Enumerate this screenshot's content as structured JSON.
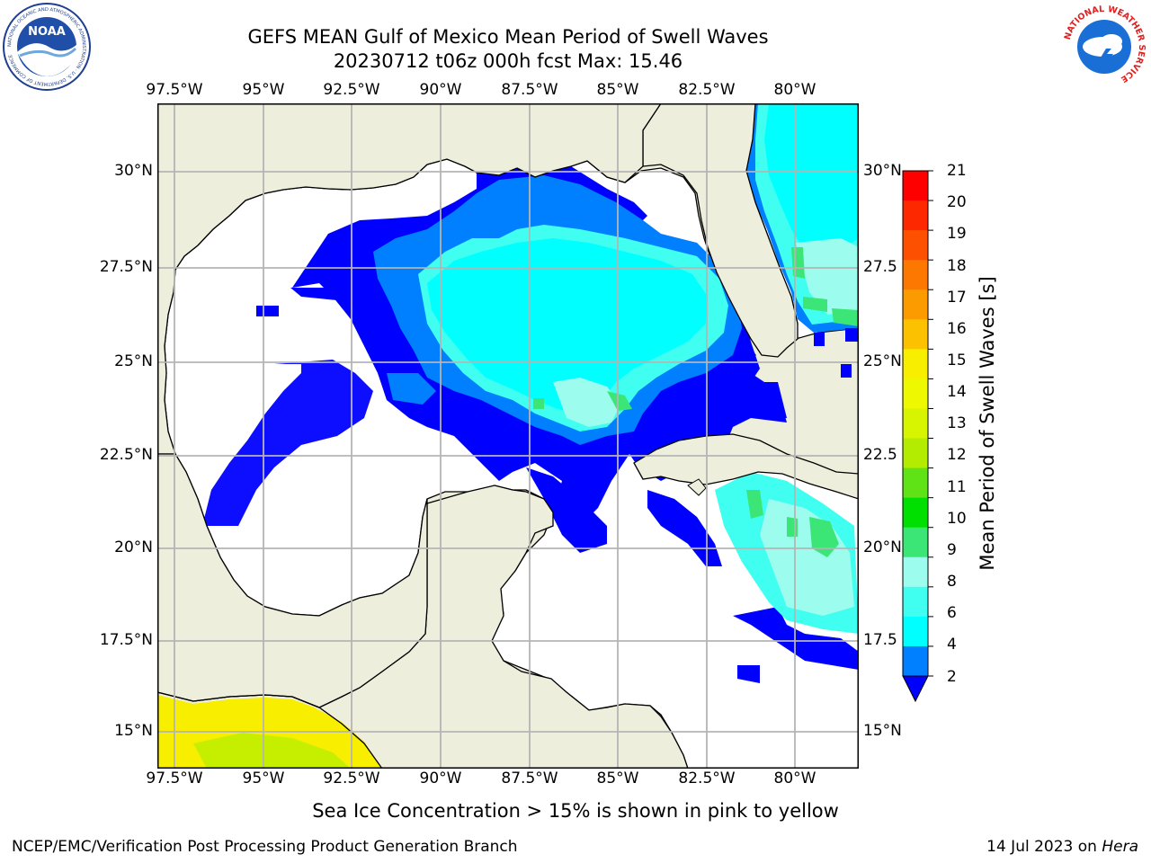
{
  "title": {
    "line1": "GEFS MEAN Gulf of Mexico Mean Period of Swell Waves",
    "line2": "20230712 t06z 000h fcst   Max: 15.46"
  },
  "map": {
    "lon_labels": [
      "97.5°W",
      "95°W",
      "92.5°W",
      "90°W",
      "87.5°W",
      "85°W",
      "82.5°W",
      "80°W"
    ],
    "lat_labels_left": [
      "30°N",
      "27.5°N",
      "25°N",
      "22.5°N",
      "20°N",
      "17.5°N",
      "15°N"
    ],
    "lat_labels_right": [
      "30°N",
      "27.5",
      "25°N",
      "22.5",
      "20°N",
      "17.5",
      "15°N"
    ],
    "colors": {
      "land": "#eeeedd",
      "ocean": "#ffffff",
      "grid": "#b4b4b4",
      "coast": "#000000"
    }
  },
  "colorbar": {
    "label": "Mean Period of Swell Waves [s]",
    "ticks": [
      "21",
      "20",
      "19",
      "18",
      "17",
      "16",
      "15",
      "14",
      "13",
      "12",
      "11",
      "10",
      "9",
      "8",
      "6",
      "4",
      "2"
    ],
    "colors": [
      "#fe0000",
      "#fd2800",
      "#fd5000",
      "#fd7800",
      "#fc9b00",
      "#fcc100",
      "#f8ee00",
      "#eef800",
      "#d7f400",
      "#b3ec00",
      "#5fe316",
      "#00e000",
      "#3ce676",
      "#9cfdef",
      "#40fff0",
      "#00ffff",
      "#0080ff",
      "#0000ff"
    ]
  },
  "logos": {
    "noaa_text": "NOAA",
    "noaa_ring": "NATIONAL OCEANIC AND ATMOSPHERIC ADMINISTRATION · U.S. DEPARTMENT OF COMMERCE",
    "nws_ring": "NATIONAL WEATHER SERVICE"
  },
  "note": "Sea Ice Concentration > 15% is shown in pink to yellow",
  "footer": {
    "left": "NCEP/EMC/Verification Post Processing Product Generation Branch",
    "date": "14 Jul 2023 on ",
    "host": "Hera"
  }
}
